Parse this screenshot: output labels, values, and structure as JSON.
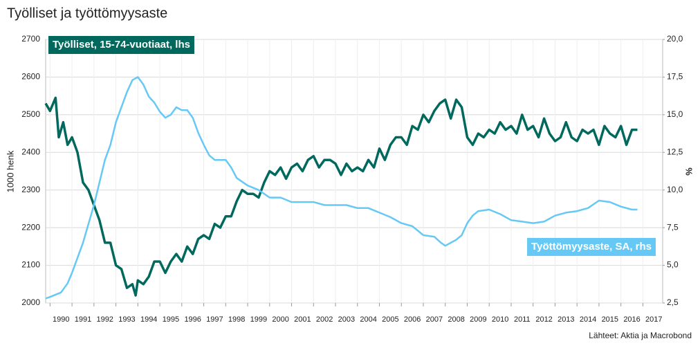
{
  "chart_data": {
    "type": "line",
    "title": "Työlliset ja työttömyysaste",
    "y_label": "1000 henk",
    "y2_label": "%",
    "source": "Lähteet: Aktia ja Macrobond",
    "xlim": [
      1989.8,
      2017.9
    ],
    "xticks": [
      1990,
      1991,
      1992,
      1993,
      1994,
      1995,
      1996,
      1997,
      1998,
      1999,
      2000,
      2001,
      2002,
      2003,
      2004,
      2005,
      2006,
      2007,
      2008,
      2009,
      2010,
      2011,
      2012,
      2013,
      2014,
      2015,
      2016,
      2017
    ],
    "ylim": [
      2000,
      2700
    ],
    "yticks": [
      2000,
      2100,
      2200,
      2300,
      2400,
      2500,
      2600,
      2700
    ],
    "y2lim": [
      2.5,
      20
    ],
    "y2ticks": [
      {
        "value": 2.5,
        "label": "2,5"
      },
      {
        "value": 5,
        "label": "5,0"
      },
      {
        "value": 7.5,
        "label": "7,5"
      },
      {
        "value": 10,
        "label": "10,0"
      },
      {
        "value": 12.5,
        "label": "12,5"
      },
      {
        "value": 15,
        "label": "15,0"
      },
      {
        "value": 17.5,
        "label": "17,5"
      },
      {
        "value": 20,
        "label": "20,0"
      }
    ],
    "grid": true,
    "series": [
      {
        "name": "Työlliset, 15-74-vuotiaat, lhs",
        "color": "#00685c",
        "axis": "y",
        "x": [
          1989.8,
          1990.0,
          1990.25,
          1990.4,
          1990.6,
          1990.8,
          1991.0,
          1991.25,
          1991.5,
          1991.75,
          1992.0,
          1992.25,
          1992.5,
          1992.75,
          1993.0,
          1993.25,
          1993.5,
          1993.75,
          1993.9,
          1994.0,
          1994.25,
          1994.5,
          1994.75,
          1995.0,
          1995.25,
          1995.5,
          1995.75,
          1996.0,
          1996.25,
          1996.5,
          1996.75,
          1997.0,
          1997.25,
          1997.5,
          1997.75,
          1998.0,
          1998.25,
          1998.5,
          1998.75,
          1999.0,
          1999.25,
          1999.5,
          1999.75,
          2000.0,
          2000.25,
          2000.5,
          2000.75,
          2001.0,
          2001.25,
          2001.5,
          2001.75,
          2002.0,
          2002.25,
          2002.5,
          2002.75,
          2003.0,
          2003.25,
          2003.5,
          2003.75,
          2004.0,
          2004.25,
          2004.5,
          2004.75,
          2005.0,
          2005.25,
          2005.5,
          2005.75,
          2006.0,
          2006.25,
          2006.5,
          2006.75,
          2007.0,
          2007.25,
          2007.5,
          2007.75,
          2008.0,
          2008.25,
          2008.5,
          2008.75,
          2009.0,
          2009.25,
          2009.5,
          2009.75,
          2010.0,
          2010.25,
          2010.5,
          2010.75,
          2011.0,
          2011.25,
          2011.5,
          2011.75,
          2012.0,
          2012.25,
          2012.5,
          2012.75,
          2013.0,
          2013.25,
          2013.5,
          2013.75,
          2014.0,
          2014.25,
          2014.5,
          2014.75,
          2015.0,
          2015.25,
          2015.5,
          2015.75,
          2016.0,
          2016.25,
          2016.5,
          2016.75
        ],
        "values": [
          2530,
          2510,
          2545,
          2440,
          2480,
          2420,
          2440,
          2400,
          2320,
          2300,
          2260,
          2220,
          2160,
          2160,
          2100,
          2090,
          2040,
          2050,
          2020,
          2060,
          2050,
          2070,
          2110,
          2110,
          2080,
          2110,
          2130,
          2110,
          2150,
          2130,
          2170,
          2180,
          2170,
          2210,
          2200,
          2230,
          2230,
          2270,
          2300,
          2290,
          2290,
          2280,
          2320,
          2350,
          2340,
          2360,
          2330,
          2360,
          2370,
          2350,
          2380,
          2390,
          2360,
          2380,
          2380,
          2370,
          2340,
          2370,
          2350,
          2360,
          2350,
          2380,
          2360,
          2410,
          2380,
          2420,
          2440,
          2440,
          2420,
          2470,
          2460,
          2500,
          2480,
          2510,
          2530,
          2540,
          2490,
          2540,
          2520,
          2440,
          2420,
          2450,
          2440,
          2460,
          2450,
          2480,
          2460,
          2470,
          2450,
          2500,
          2460,
          2470,
          2440,
          2490,
          2450,
          2430,
          2440,
          2480,
          2440,
          2430,
          2460,
          2450,
          2460,
          2420,
          2470,
          2450,
          2440,
          2470,
          2420,
          2460,
          2460
        ]
      },
      {
        "name": "Työttömyysaste, SA, rhs",
        "color": "#66c8f5",
        "axis": "y2",
        "x": [
          1989.8,
          1990.0,
          1990.5,
          1990.8,
          1991.0,
          1991.5,
          1992.0,
          1992.25,
          1992.5,
          1992.75,
          1993.0,
          1993.25,
          1993.5,
          1993.75,
          1994.0,
          1994.25,
          1994.5,
          1994.75,
          1995.0,
          1995.25,
          1995.5,
          1995.75,
          1996.0,
          1996.25,
          1996.5,
          1996.75,
          1997.0,
          1997.25,
          1997.5,
          1998.0,
          1998.25,
          1998.5,
          1999.0,
          1999.5,
          2000.0,
          2000.5,
          2001.0,
          2001.5,
          2002.0,
          2002.5,
          2003.0,
          2003.5,
          2004.0,
          2004.5,
          2005.0,
          2005.5,
          2006.0,
          2006.5,
          2007.0,
          2007.5,
          2007.8,
          2008.0,
          2008.5,
          2008.75,
          2009.0,
          2009.25,
          2009.5,
          2010.0,
          2010.5,
          2011.0,
          2011.5,
          2012.0,
          2012.5,
          2013.0,
          2013.5,
          2014.0,
          2014.5,
          2015.0,
          2015.5,
          2016.0,
          2016.5,
          2016.75
        ],
        "values": [
          2.8,
          2.9,
          3.2,
          3.8,
          4.5,
          6.5,
          9.0,
          10.5,
          12.0,
          13.0,
          14.5,
          15.5,
          16.5,
          17.3,
          17.5,
          17.0,
          16.2,
          15.8,
          15.2,
          14.8,
          15.0,
          15.5,
          15.3,
          15.3,
          14.8,
          13.8,
          13.0,
          12.3,
          12.0,
          12.0,
          11.5,
          10.8,
          10.3,
          10.0,
          9.5,
          9.5,
          9.2,
          9.2,
          9.2,
          9.0,
          9.0,
          9.0,
          8.8,
          8.8,
          8.5,
          8.2,
          7.8,
          7.6,
          7.0,
          6.9,
          6.5,
          6.3,
          6.7,
          7.0,
          7.8,
          8.3,
          8.6,
          8.7,
          8.4,
          8.0,
          7.9,
          7.8,
          7.9,
          8.3,
          8.5,
          8.6,
          8.8,
          9.3,
          9.2,
          8.9,
          8.7,
          8.7
        ]
      }
    ]
  }
}
